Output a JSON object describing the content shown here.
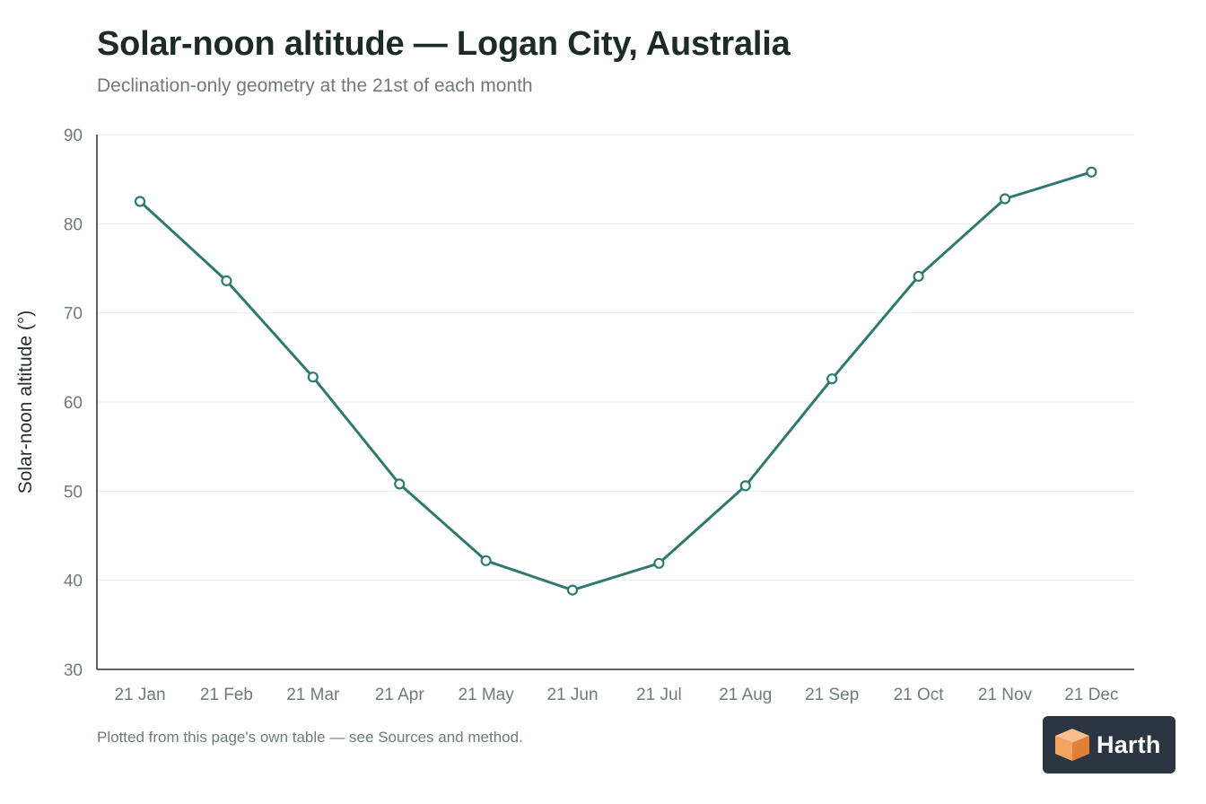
{
  "page": {
    "title": "Solar-noon altitude — Logan City, Australia",
    "subtitle": "Declination-only geometry at the 21st of each month",
    "footnote": "Plotted from this page's own table — see Sources and method."
  },
  "badge": {
    "label": "Harth",
    "icon": "cube-logo-icon",
    "background": "#2b3642",
    "accent": "#f2a561"
  },
  "chart_data": {
    "type": "line",
    "title": "Solar-noon altitude — Logan City, Australia",
    "subtitle": "Declination-only geometry at the 21st of each month",
    "xlabel": "",
    "ylabel": "Solar-noon altitude (°)",
    "ylim": [
      30,
      90
    ],
    "yticks": [
      30,
      40,
      50,
      60,
      70,
      80,
      90
    ],
    "grid": true,
    "legend": "none",
    "line_color": "#2f7a6f",
    "categories": [
      "21 Jan",
      "21 Feb",
      "21 Mar",
      "21 Apr",
      "21 May",
      "21 Jun",
      "21 Jul",
      "21 Aug",
      "21 Sep",
      "21 Oct",
      "21 Nov",
      "21 Dec"
    ],
    "series": [
      {
        "values": [
          82.5,
          73.6,
          62.8,
          50.8,
          42.2,
          38.9,
          41.9,
          50.6,
          62.6,
          74.1,
          82.8,
          85.8
        ]
      }
    ]
  }
}
